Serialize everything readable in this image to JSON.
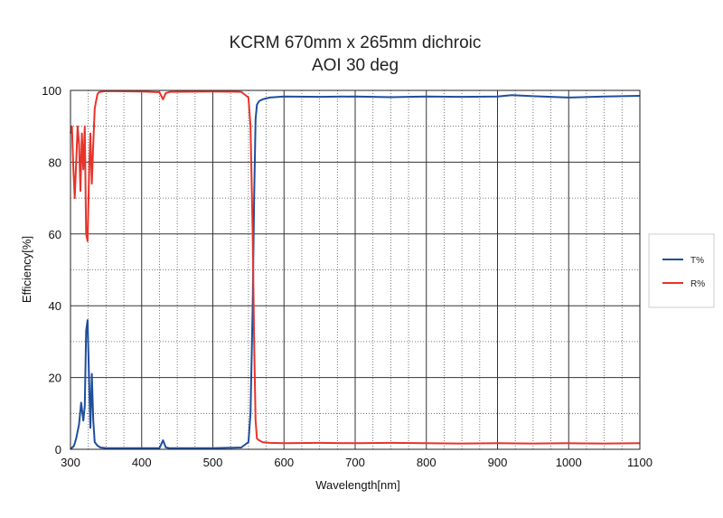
{
  "chart_data": {
    "type": "line",
    "title": "KCRM 670mm x 265mm dichroic",
    "subtitle": "AOI 30 deg",
    "xlabel": "Wavelength[nm]",
    "ylabel": "Efficiency[%]",
    "xlim": [
      300,
      1100
    ],
    "ylim": [
      0,
      100
    ],
    "xticks": [
      300,
      400,
      500,
      600,
      700,
      800,
      900,
      1000,
      1100
    ],
    "yticks": [
      0,
      20,
      40,
      60,
      80,
      100
    ],
    "grid": "major solid, minor dotted",
    "legend_position": "right",
    "series": [
      {
        "name": "T%",
        "color": "#1f4e9c",
        "x": [
          300,
          305,
          308,
          312,
          315,
          318,
          320,
          322,
          324,
          326,
          328,
          330,
          332,
          334,
          338,
          342,
          350,
          400,
          425,
          430,
          434,
          440,
          500,
          540,
          550,
          553,
          556,
          558,
          560,
          562,
          565,
          570,
          580,
          600,
          650,
          700,
          750,
          800,
          850,
          900,
          920,
          950,
          1000,
          1050,
          1100
        ],
        "y": [
          0,
          1,
          3,
          7,
          13,
          8,
          12,
          33,
          36,
          20,
          6,
          21,
          8,
          2,
          1,
          0.5,
          0.3,
          0.3,
          0.3,
          2.5,
          0.5,
          0.3,
          0.3,
          0.5,
          2,
          10,
          40,
          70,
          92,
          96,
          97,
          97.5,
          98,
          98.3,
          98.2,
          98.3,
          98.1,
          98.3,
          98.2,
          98.3,
          98.7,
          98.4,
          98,
          98.3,
          98.5
        ]
      },
      {
        "name": "R%",
        "color": "#e8332a",
        "x": [
          300,
          302,
          304,
          306,
          308,
          310,
          312,
          314,
          316,
          318,
          320,
          322,
          324,
          326,
          328,
          330,
          332,
          334,
          336,
          338,
          340,
          345,
          350,
          400,
          425,
          430,
          434,
          440,
          500,
          540,
          550,
          553,
          556,
          558,
          560,
          562,
          565,
          570,
          580,
          600,
          650,
          700,
          750,
          800,
          850,
          900,
          950,
          1000,
          1050,
          1100
        ],
        "y": [
          88,
          90,
          78,
          70,
          80,
          90,
          85,
          72,
          88,
          78,
          90,
          60,
          58,
          76,
          88,
          74,
          85,
          95,
          97,
          99,
          99.5,
          99.7,
          99.8,
          99.7,
          99.5,
          97.5,
          99.3,
          99.6,
          99.7,
          99.6,
          98,
          90,
          60,
          30,
          8,
          3,
          2.5,
          2,
          1.8,
          1.7,
          1.8,
          1.7,
          1.8,
          1.7,
          1.6,
          1.7,
          1.6,
          1.7,
          1.6,
          1.7
        ]
      }
    ]
  }
}
